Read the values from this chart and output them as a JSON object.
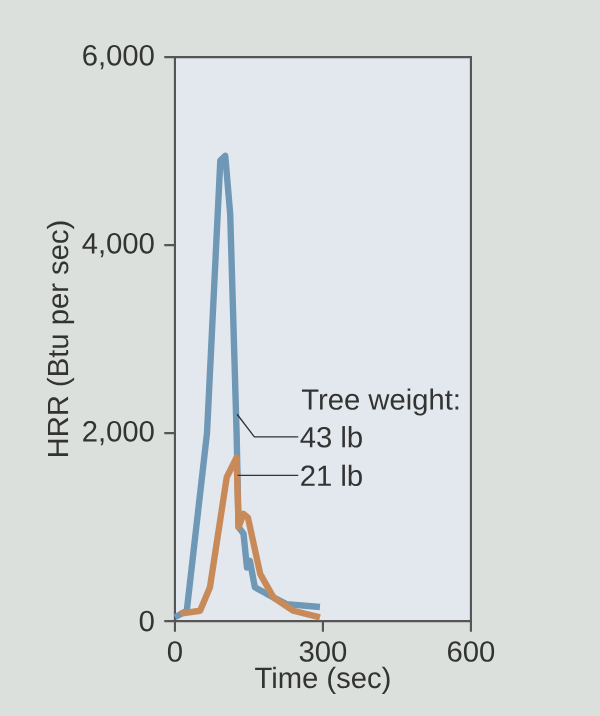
{
  "chart_data": {
    "type": "line",
    "xlabel": "Time (sec)",
    "ylabel": "HRR (Btu per sec)",
    "xlim": [
      0,
      600
    ],
    "ylim": [
      0,
      6000
    ],
    "xticks": [
      0,
      300,
      600
    ],
    "yticks": [
      {
        "value": 0,
        "label": "0"
      },
      {
        "value": 2000,
        "label": "2,000"
      },
      {
        "value": 4000,
        "label": "4,000"
      },
      {
        "value": 6000,
        "label": "6,000"
      }
    ],
    "grid": false,
    "legend": false,
    "marker": "none",
    "line_style": "solid",
    "annotations": [
      {
        "text": "Tree weight:",
        "x": 126,
        "y": 2200
      }
    ],
    "series": [
      {
        "name": "43 lb",
        "color": "#6f97b6",
        "x": [
          0,
          24,
          65,
          92,
          102,
          112,
          125,
          129,
          139,
          146,
          152,
          162,
          186,
          226,
          294
        ],
        "values": [
          40,
          110,
          2000,
          4900,
          4950,
          4330,
          2000,
          1000,
          930,
          570,
          640,
          360,
          290,
          180,
          150
        ]
      },
      {
        "name": "21 lb",
        "color": "#c98a5a",
        "x": [
          11,
          51,
          71,
          105,
          125,
          129,
          139,
          148,
          173,
          200,
          240,
          294
        ],
        "values": [
          80,
          110,
          360,
          1530,
          1740,
          1000,
          1140,
          1100,
          500,
          250,
          110,
          40
        ]
      }
    ]
  }
}
